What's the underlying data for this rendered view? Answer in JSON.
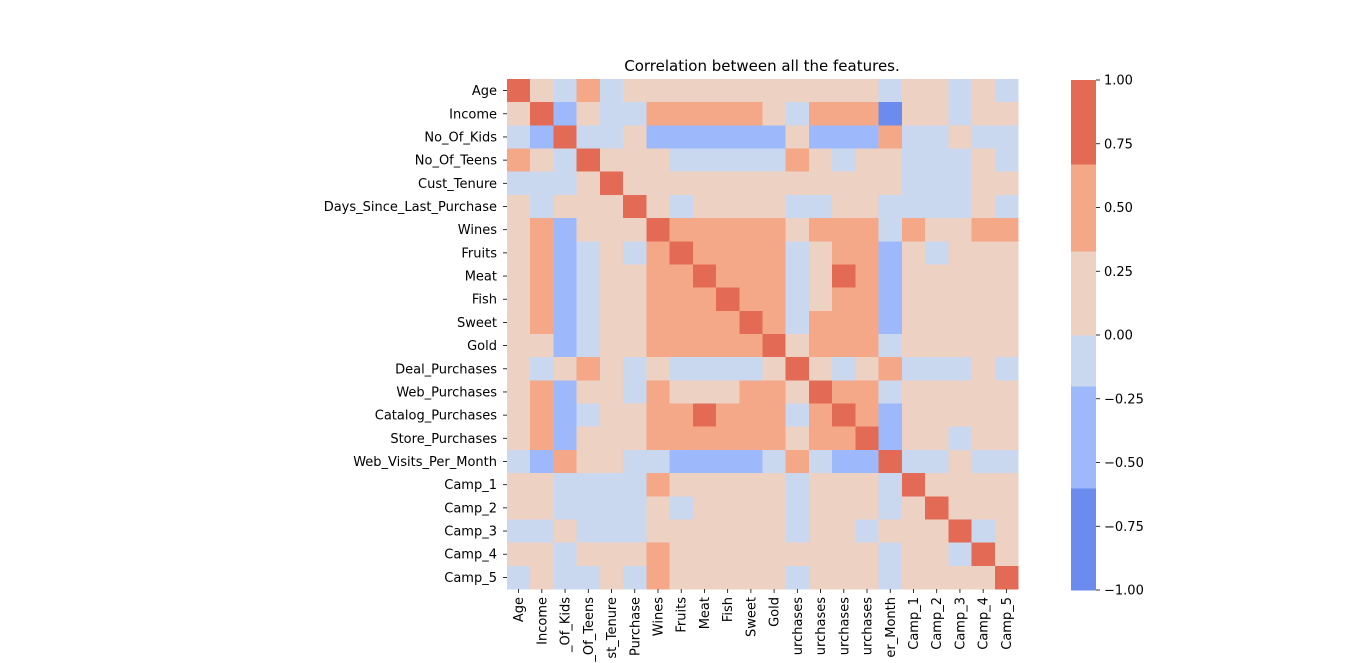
{
  "chart_data": {
    "type": "heatmap",
    "title": "Correlation between all the features.",
    "row_labels": [
      "Age",
      "Income",
      "No_Of_Kids",
      "No_Of_Teens",
      "Cust_Tenure",
      "Days_Since_Last_Purchase",
      "Wines",
      "Fruits",
      "Meat",
      "Fish",
      "Sweet",
      "Gold",
      "Deal_Purchases",
      "Web_Purchases",
      "Catalog_Purchases",
      "Store_Purchases",
      "Web_Visits_Per_Month",
      "Camp_1",
      "Camp_2",
      "Camp_3",
      "Camp_4",
      "Camp_5"
    ],
    "column_labels": [
      "Age",
      "Income",
      "_Of_Kids",
      "_Of_Teens",
      "st_Tenure",
      "Purchase",
      "Wines",
      "Fruits",
      "Meat",
      "Fish",
      "Sweet",
      "Gold",
      "urchases",
      "urchases",
      "urchases",
      "urchases",
      "er_Month",
      "Camp_1",
      "Camp_2",
      "Camp_3",
      "Camp_4",
      "Camp_5"
    ],
    "values": [
      [
        1,
        0.1,
        -0.1,
        0.6,
        -0.1,
        0.1,
        0.1,
        0.1,
        0.1,
        0.1,
        0.1,
        0.1,
        0.1,
        0.1,
        0.1,
        0.1,
        -0.1,
        0.1,
        0.1,
        -0.1,
        0.1,
        -0.1
      ],
      [
        0.1,
        1,
        -0.4,
        0.1,
        -0.1,
        -0.1,
        0.6,
        0.6,
        0.6,
        0.6,
        0.6,
        0.1,
        -0.1,
        0.6,
        0.6,
        0.6,
        -0.6,
        0.1,
        0.1,
        -0.1,
        0.1,
        0.1
      ],
      [
        -0.1,
        -0.4,
        1,
        -0.1,
        -0.1,
        0.1,
        -0.4,
        -0.4,
        -0.4,
        -0.4,
        -0.4,
        -0.4,
        0.1,
        -0.4,
        -0.4,
        -0.4,
        0.6,
        -0.1,
        -0.1,
        0.1,
        -0.1,
        -0.1
      ],
      [
        0.6,
        0.1,
        -0.1,
        1,
        0.1,
        0.1,
        0.1,
        -0.1,
        -0.1,
        -0.1,
        -0.1,
        -0.1,
        0.6,
        0.1,
        -0.1,
        0.1,
        0.1,
        -0.1,
        -0.1,
        -0.1,
        0.1,
        -0.1
      ],
      [
        -0.1,
        -0.1,
        -0.1,
        0.1,
        1,
        0.1,
        0.1,
        0.1,
        0.1,
        0.1,
        0.1,
        0.1,
        0.1,
        0.1,
        0.1,
        0.1,
        0.1,
        -0.1,
        -0.1,
        -0.1,
        0.1,
        0.1
      ],
      [
        0.1,
        -0.1,
        0.1,
        0.1,
        0.1,
        1,
        0.1,
        -0.1,
        0.1,
        0.1,
        0.1,
        0.1,
        -0.1,
        -0.1,
        0.1,
        0.1,
        -0.1,
        -0.1,
        -0.1,
        -0.1,
        0.1,
        -0.1
      ],
      [
        0.1,
        0.6,
        -0.4,
        0.1,
        0.1,
        0.1,
        1,
        0.6,
        0.6,
        0.6,
        0.6,
        0.6,
        0.1,
        0.6,
        0.6,
        0.6,
        -0.1,
        0.6,
        0.1,
        0.1,
        0.6,
        0.6
      ],
      [
        0.1,
        0.6,
        -0.4,
        -0.1,
        0.1,
        -0.1,
        0.6,
        1,
        0.6,
        0.6,
        0.6,
        0.6,
        -0.1,
        0.1,
        0.6,
        0.6,
        -0.4,
        0.1,
        -0.1,
        0.1,
        0.1,
        0.1
      ],
      [
        0.1,
        0.6,
        -0.4,
        -0.1,
        0.1,
        0.1,
        0.6,
        0.6,
        1,
        0.6,
        0.6,
        0.6,
        -0.1,
        0.1,
        1,
        0.6,
        -0.4,
        0.1,
        0.1,
        0.1,
        0.1,
        0.1
      ],
      [
        0.1,
        0.6,
        -0.4,
        -0.1,
        0.1,
        0.1,
        0.6,
        0.6,
        0.6,
        1,
        0.6,
        0.6,
        -0.1,
        0.1,
        0.6,
        0.6,
        -0.4,
        0.1,
        0.1,
        0.1,
        0.1,
        0.1
      ],
      [
        0.1,
        0.6,
        -0.4,
        -0.1,
        0.1,
        0.1,
        0.6,
        0.6,
        0.6,
        0.6,
        1,
        0.6,
        -0.1,
        0.6,
        0.6,
        0.6,
        -0.4,
        0.1,
        0.1,
        0.1,
        0.1,
        0.1
      ],
      [
        0.1,
        0.1,
        -0.4,
        -0.1,
        0.1,
        0.1,
        0.6,
        0.6,
        0.6,
        0.6,
        0.6,
        1,
        0.1,
        0.6,
        0.6,
        0.6,
        -0.1,
        0.1,
        0.1,
        0.1,
        0.1,
        0.1
      ],
      [
        0.1,
        -0.1,
        0.1,
        0.6,
        0.1,
        -0.1,
        0.1,
        -0.1,
        -0.1,
        -0.1,
        -0.1,
        0.1,
        1,
        0.1,
        -0.1,
        0.1,
        0.6,
        -0.1,
        -0.1,
        -0.1,
        0.1,
        -0.1
      ],
      [
        0.1,
        0.6,
        -0.4,
        0.1,
        0.1,
        -0.1,
        0.6,
        0.1,
        0.1,
        0.1,
        0.6,
        0.6,
        0.1,
        1,
        0.6,
        0.6,
        -0.1,
        0.1,
        0.1,
        0.1,
        0.1,
        0.1
      ],
      [
        0.1,
        0.6,
        -0.4,
        -0.1,
        0.1,
        0.1,
        0.6,
        0.6,
        1,
        0.6,
        0.6,
        0.6,
        -0.1,
        0.6,
        1,
        0.6,
        -0.4,
        0.1,
        0.1,
        0.1,
        0.1,
        0.1
      ],
      [
        0.1,
        0.6,
        -0.4,
        0.1,
        0.1,
        0.1,
        0.6,
        0.6,
        0.6,
        0.6,
        0.6,
        0.6,
        0.1,
        0.6,
        0.6,
        1,
        -0.4,
        0.1,
        0.1,
        -0.1,
        0.1,
        0.1
      ],
      [
        -0.1,
        -0.4,
        0.6,
        0.1,
        0.1,
        -0.1,
        -0.1,
        -0.4,
        -0.4,
        -0.4,
        -0.4,
        -0.1,
        0.6,
        -0.1,
        -0.4,
        -0.4,
        1,
        -0.1,
        -0.1,
        0.1,
        -0.1,
        -0.1
      ],
      [
        0.1,
        0.1,
        -0.1,
        -0.1,
        -0.1,
        -0.1,
        0.6,
        0.1,
        0.1,
        0.1,
        0.1,
        0.1,
        -0.1,
        0.1,
        0.1,
        0.1,
        -0.1,
        1,
        0.1,
        0.1,
        0.1,
        0.1
      ],
      [
        0.1,
        0.1,
        -0.1,
        -0.1,
        -0.1,
        -0.1,
        0.1,
        -0.1,
        0.1,
        0.1,
        0.1,
        0.1,
        -0.1,
        0.1,
        0.1,
        0.1,
        -0.1,
        0.1,
        1,
        0.1,
        0.1,
        0.1
      ],
      [
        -0.1,
        -0.1,
        0.1,
        -0.1,
        -0.1,
        -0.1,
        0.1,
        0.1,
        0.1,
        0.1,
        0.1,
        0.1,
        -0.1,
        0.1,
        0.1,
        -0.1,
        0.1,
        0.1,
        0.1,
        1,
        -0.1,
        0.1
      ],
      [
        0.1,
        0.1,
        -0.1,
        0.1,
        0.1,
        0.1,
        0.6,
        0.1,
        0.1,
        0.1,
        0.1,
        0.1,
        0.1,
        0.1,
        0.1,
        0.1,
        -0.1,
        0.1,
        0.1,
        -0.1,
        1,
        0.1
      ],
      [
        -0.1,
        0.1,
        -0.1,
        -0.1,
        0.1,
        -0.1,
        0.6,
        0.1,
        0.1,
        0.1,
        0.1,
        0.1,
        -0.1,
        0.1,
        0.1,
        0.1,
        -0.1,
        0.1,
        0.1,
        0.1,
        0.1,
        1
      ]
    ],
    "colorbar": {
      "range": [
        -1.0,
        1.0
      ],
      "ticks": [
        "1.00",
        "0.75",
        "0.50",
        "0.25",
        "0.00",
        "−0.25",
        "−0.50",
        "−0.75",
        "−1.00"
      ],
      "tick_values": [
        1.0,
        0.75,
        0.5,
        0.25,
        0.0,
        -0.25,
        -0.5,
        -0.75,
        -1.0
      ],
      "bins": [
        {
          "from": -1.0,
          "to": -0.6,
          "color": "#6b8cee"
        },
        {
          "from": -0.6,
          "to": -0.2,
          "color": "#9db9fc"
        },
        {
          "from": -0.2,
          "to": 0.0,
          "color": "#cad8ef"
        },
        {
          "from": 0.0,
          "to": 0.33,
          "color": "#edd1c2"
        },
        {
          "from": 0.33,
          "to": 0.67,
          "color": "#f5a888"
        },
        {
          "from": 0.67,
          "to": 1.0,
          "color": "#e36b55"
        }
      ]
    }
  }
}
